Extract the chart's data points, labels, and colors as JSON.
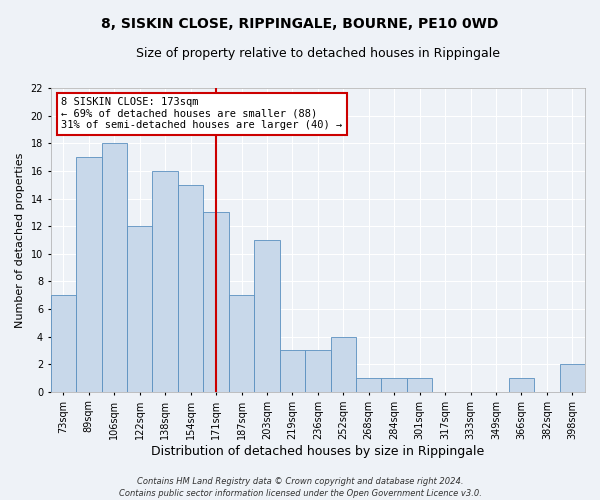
{
  "title": "8, SISKIN CLOSE, RIPPINGALE, BOURNE, PE10 0WD",
  "subtitle": "Size of property relative to detached houses in Rippingale",
  "xlabel": "Distribution of detached houses by size in Rippingale",
  "ylabel": "Number of detached properties",
  "categories": [
    "73sqm",
    "89sqm",
    "106sqm",
    "122sqm",
    "138sqm",
    "154sqm",
    "171sqm",
    "187sqm",
    "203sqm",
    "219sqm",
    "236sqm",
    "252sqm",
    "268sqm",
    "284sqm",
    "301sqm",
    "317sqm",
    "333sqm",
    "349sqm",
    "366sqm",
    "382sqm",
    "398sqm"
  ],
  "values": [
    7,
    17,
    18,
    12,
    16,
    15,
    13,
    7,
    11,
    3,
    3,
    4,
    1,
    1,
    1,
    0,
    0,
    0,
    1,
    0,
    2
  ],
  "bar_color": "#c8d8ea",
  "bar_edgecolor": "#5a90c0",
  "bar_linewidth": 0.6,
  "vline_x": 6,
  "vline_color": "#cc0000",
  "ylim": [
    0,
    22
  ],
  "yticks": [
    0,
    2,
    4,
    6,
    8,
    10,
    12,
    14,
    16,
    18,
    20,
    22
  ],
  "annotation_title": "8 SISKIN CLOSE: 173sqm",
  "annotation_line1": "← 69% of detached houses are smaller (88)",
  "annotation_line2": "31% of semi-detached houses are larger (40) →",
  "annotation_box_facecolor": "#ffffff",
  "annotation_box_edgecolor": "#cc0000",
  "footer1": "Contains HM Land Registry data © Crown copyright and database right 2024.",
  "footer2": "Contains public sector information licensed under the Open Government Licence v3.0.",
  "background_color": "#eef2f7",
  "grid_color": "#ffffff",
  "title_fontsize": 10,
  "subtitle_fontsize": 9,
  "ylabel_fontsize": 8,
  "xlabel_fontsize": 9,
  "tick_fontsize": 7,
  "annotation_fontsize": 7.5,
  "footer_fontsize": 6
}
